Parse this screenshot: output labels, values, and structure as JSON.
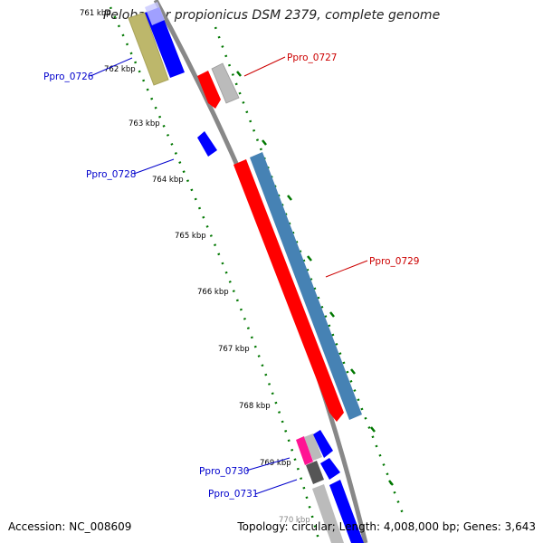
{
  "title": "Pelobacter propionicus DSM 2379, complete genome",
  "footer": {
    "accession": "Accession: NC_008609",
    "summary": "Topology: circular; Length: 4,008,000 bp; Genes: 3,643"
  },
  "ticks": [
    {
      "label": "761 kbp"
    },
    {
      "label": "762 kbp"
    },
    {
      "label": "763 kbp"
    },
    {
      "label": "764 kbp"
    },
    {
      "label": "765 kbp"
    },
    {
      "label": "766 kbp"
    },
    {
      "label": "767 kbp"
    },
    {
      "label": "768 kbp"
    },
    {
      "label": "769 kbp"
    },
    {
      "label": "770 kbp"
    }
  ],
  "genes": [
    {
      "label": "Ppro_0726",
      "color": "#0000cc"
    },
    {
      "label": "Ppro_0727",
      "color": "#cc0000"
    },
    {
      "label": "Ppro_0728",
      "color": "#0000cc"
    },
    {
      "label": "Ppro_0729",
      "color": "#cc0000"
    },
    {
      "label": "Ppro_0730",
      "color": "#0000cc"
    },
    {
      "label": "Ppro_0731",
      "color": "#0000cc"
    }
  ],
  "colors": {
    "backbone": "#888888",
    "tick_marks": "#007700",
    "cds_forward": "#ff0000",
    "cds_reverse": "#0000ff",
    "rna_steelblue": "#4682b4",
    "gray_feature": "#bbbbbb",
    "olive_feature": "#bdb76b",
    "pink_feature": "#ff1493",
    "dark_feature": "#555555"
  }
}
